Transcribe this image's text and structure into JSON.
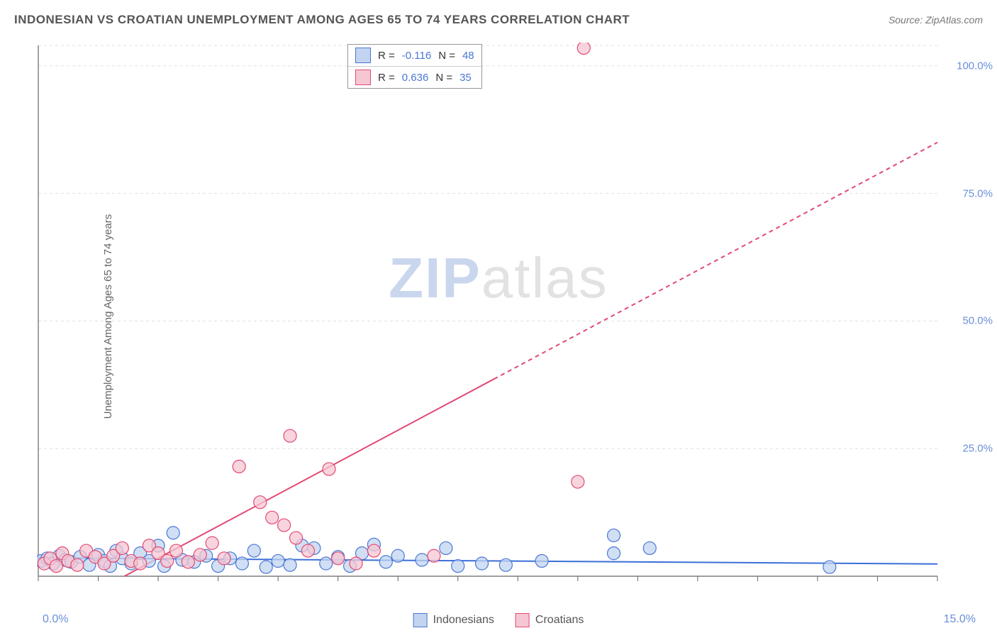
{
  "title": "INDONESIAN VS CROATIAN UNEMPLOYMENT AMONG AGES 65 TO 74 YEARS CORRELATION CHART",
  "source": "Source: ZipAtlas.com",
  "ylabel": "Unemployment Among Ages 65 to 74 years",
  "watermark": {
    "zip": "ZIP",
    "atlas": "atlas"
  },
  "chart": {
    "type": "scatter",
    "xlim": [
      0,
      15
    ],
    "ylim": [
      0,
      104
    ],
    "xtick_labels": {
      "min": "0.0%",
      "max": "15.0%"
    },
    "ytick_positions": [
      25,
      50,
      75,
      100
    ],
    "ytick_labels": [
      "25.0%",
      "50.0%",
      "75.0%",
      "100.0%"
    ],
    "grid_color": "#e0e0e0",
    "axis_color": "#666666",
    "background_color": "#ffffff",
    "xtick_step": 1,
    "marker_radius": 9,
    "marker_stroke_width": 1.2,
    "line_width": 2,
    "series": [
      {
        "name": "Indonesians",
        "fill": "#c2d4f0",
        "stroke": "#4a77d4",
        "line_color": "#3b6fd6",
        "R": "-0.116",
        "N": "48",
        "trend": {
          "y_at_x0": 3.6,
          "y_at_xmax": 2.4,
          "dash": false
        },
        "points": [
          [
            0.05,
            3.0
          ],
          [
            0.15,
            3.5
          ],
          [
            0.25,
            2.5
          ],
          [
            0.35,
            4.0
          ],
          [
            0.45,
            3.2
          ],
          [
            0.55,
            2.8
          ],
          [
            0.7,
            3.8
          ],
          [
            0.85,
            2.2
          ],
          [
            1.0,
            4.2
          ],
          [
            1.1,
            3.0
          ],
          [
            1.2,
            2.0
          ],
          [
            1.3,
            5.0
          ],
          [
            1.4,
            3.5
          ],
          [
            1.55,
            2.5
          ],
          [
            1.7,
            4.5
          ],
          [
            1.85,
            3.0
          ],
          [
            2.0,
            6.0
          ],
          [
            2.1,
            2.0
          ],
          [
            2.25,
            8.5
          ],
          [
            2.4,
            3.2
          ],
          [
            2.6,
            2.8
          ],
          [
            2.8,
            4.0
          ],
          [
            3.0,
            2.0
          ],
          [
            3.2,
            3.5
          ],
          [
            3.4,
            2.5
          ],
          [
            3.6,
            5.0
          ],
          [
            3.8,
            1.8
          ],
          [
            4.0,
            3.0
          ],
          [
            4.2,
            2.2
          ],
          [
            4.4,
            6.0
          ],
          [
            4.6,
            5.5
          ],
          [
            4.8,
            2.5
          ],
          [
            5.0,
            3.8
          ],
          [
            5.2,
            2.0
          ],
          [
            5.4,
            4.5
          ],
          [
            5.6,
            6.2
          ],
          [
            5.8,
            2.8
          ],
          [
            6.0,
            4.0
          ],
          [
            6.4,
            3.2
          ],
          [
            6.8,
            5.5
          ],
          [
            7.0,
            2.0
          ],
          [
            7.4,
            2.5
          ],
          [
            7.8,
            2.2
          ],
          [
            8.4,
            3.0
          ],
          [
            9.6,
            8.0
          ],
          [
            9.6,
            4.5
          ],
          [
            10.2,
            5.5
          ],
          [
            13.2,
            1.8
          ]
        ]
      },
      {
        "name": "Croatians",
        "fill": "#f5c7d3",
        "stroke": "#e24a72",
        "line_color": "#e24a72",
        "R": "0.636",
        "N": "35",
        "trend": {
          "y_at_x0": -9,
          "y_at_xmax": 85,
          "dash_after_x": 7.6
        },
        "points": [
          [
            0.1,
            2.5
          ],
          [
            0.2,
            3.5
          ],
          [
            0.3,
            2.0
          ],
          [
            0.4,
            4.5
          ],
          [
            0.5,
            3.0
          ],
          [
            0.65,
            2.2
          ],
          [
            0.8,
            5.0
          ],
          [
            0.95,
            3.8
          ],
          [
            1.1,
            2.5
          ],
          [
            1.25,
            4.0
          ],
          [
            1.4,
            5.5
          ],
          [
            1.55,
            3.0
          ],
          [
            1.7,
            2.5
          ],
          [
            1.85,
            6.0
          ],
          [
            2.0,
            4.5
          ],
          [
            2.15,
            3.0
          ],
          [
            2.3,
            5.0
          ],
          [
            2.5,
            2.8
          ],
          [
            2.7,
            4.2
          ],
          [
            2.9,
            6.5
          ],
          [
            3.1,
            3.5
          ],
          [
            3.35,
            21.5
          ],
          [
            3.7,
            14.5
          ],
          [
            3.9,
            11.5
          ],
          [
            4.1,
            10.0
          ],
          [
            4.2,
            27.5
          ],
          [
            4.3,
            7.5
          ],
          [
            4.5,
            5.0
          ],
          [
            4.85,
            21.0
          ],
          [
            5.0,
            3.5
          ],
          [
            5.3,
            2.5
          ],
          [
            5.6,
            5.0
          ],
          [
            6.6,
            4.0
          ],
          [
            9.0,
            18.5
          ],
          [
            9.1,
            103.5
          ]
        ]
      }
    ]
  },
  "legend": {
    "series1": "Indonesians",
    "series2": "Croatians"
  },
  "statbox": {
    "R_label": "R =",
    "N_label": "N ="
  }
}
